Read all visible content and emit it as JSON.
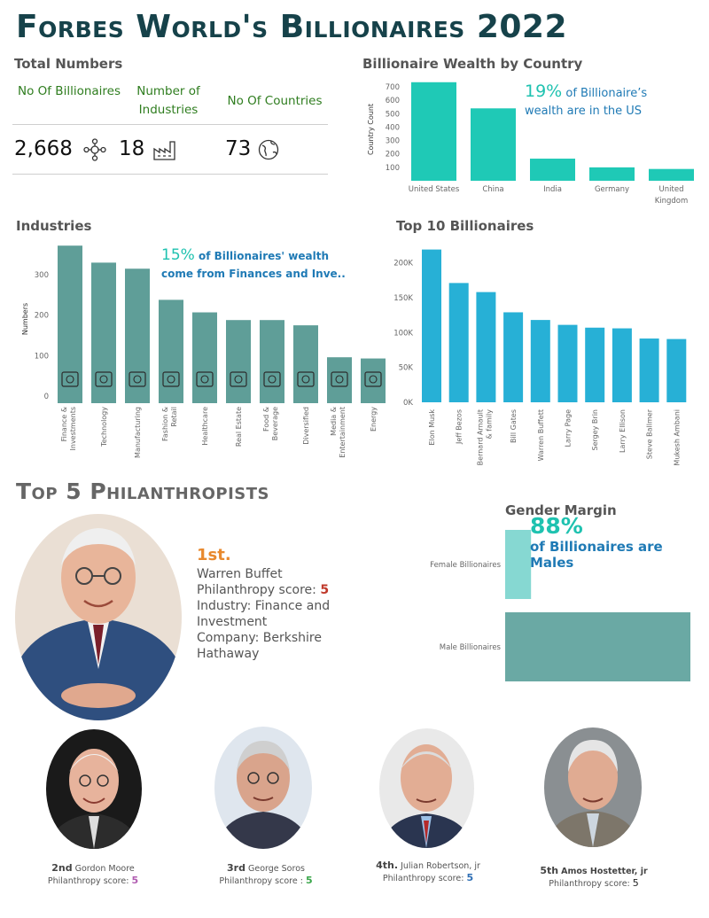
{
  "title": "Forbes World's Billionaires 2022",
  "totals": {
    "section_title": "Total Numbers",
    "headers": [
      "No Of Billionaires",
      "Number of Industries",
      "No Of Countries"
    ],
    "values": [
      "2,668",
      "18",
      "73"
    ]
  },
  "country": {
    "section_title": "Billionaire Wealth by Country",
    "note_pct": "19%",
    "note_text_1": " of Billionaire’s",
    "note_text_2": "wealth are in the US"
  },
  "industries": {
    "section_title": "Industries",
    "note_pct": "15%",
    "note_text_1": " of Billionaires' wealth",
    "note_text_2": "come from Finances and Inve.."
  },
  "top10": {
    "section_title": "Top 10 Billionaires"
  },
  "philanthropists": {
    "section_title": "Top 5 Philanthropists",
    "first": {
      "rank": "1st.",
      "name": "Warren Buffet",
      "score_label": "Philanthropy score: ",
      "score": "5",
      "industry": "Industry: Finance and Investment",
      "company": "Company: Berkshire Hathaway"
    },
    "others": [
      {
        "rank": "2nd",
        "name": "Gordon Moore",
        "score_label": "Philanthropy score: ",
        "score": "5",
        "score_color": "#b05cb0"
      },
      {
        "rank": "3rd",
        "name": "George Soros",
        "score_label": "Philanthropy score : ",
        "score": "5",
        "score_color": "#3aa64a"
      },
      {
        "rank": "4th.",
        "name": "Julian Robertson, jr",
        "score_label": "Philanthropy score: ",
        "score": "5",
        "score_color": "#2f6fb5"
      },
      {
        "rank": "5th",
        "name": "Amos Hostetter, jr",
        "score_label": "Philanthropy score: ",
        "score": "5",
        "score_color": "#222222"
      }
    ]
  },
  "gender": {
    "section_title": "Gender Margin",
    "note_pct": "88%",
    "note_text": "of Billionaires are Males"
  },
  "chart_data": [
    {
      "type": "bar",
      "title": "Billionaire Wealth by Country",
      "ylabel": "Country Count",
      "categories": [
        "United States",
        "China",
        "India",
        "Germany",
        "United Kingdom"
      ],
      "values": [
        735,
        540,
        165,
        100,
        88
      ],
      "yticks": [
        100,
        200,
        300,
        400,
        500,
        600,
        700
      ],
      "ylim": [
        0,
        760
      ],
      "color": "#1fc9b6"
    },
    {
      "type": "bar",
      "title": "Industries",
      "ylabel": "Numbers",
      "categories": [
        "Finance & Investments",
        "Technology",
        "Manufacturing",
        "Fashion & Retail",
        "Healthcare",
        "Real Estate",
        "Food & Beverage",
        "Diversified",
        "Media & Entertainment",
        "Energy"
      ],
      "values": [
        372,
        330,
        315,
        238,
        207,
        188,
        188,
        175,
        96,
        93
      ],
      "yticks": [
        0,
        100,
        200,
        300
      ],
      "ylim": [
        0,
        390
      ],
      "color": "#5f9e98"
    },
    {
      "type": "bar",
      "title": "Top 10 Billionaires",
      "categories": [
        "Elon Musk",
        "Jeff Bezos",
        "Bernard Arnault & family",
        "Bill Gates",
        "Warren Buffett",
        "Larry Page",
        "Sergey Brin",
        "Larry Ellison",
        "Steve Ballmer",
        "Mukesh Ambani"
      ],
      "values": [
        219000,
        171000,
        158000,
        129000,
        118000,
        111000,
        107000,
        106000,
        91400,
        90700
      ],
      "yticks": [
        0,
        50000,
        100000,
        150000,
        200000
      ],
      "ytick_labels": [
        "0K",
        "50K",
        "100K",
        "150K",
        "200K"
      ],
      "ylim": [
        0,
        235000
      ],
      "color": "#27b0d6"
    },
    {
      "type": "bar",
      "orientation": "horizontal",
      "title": "Gender Margin",
      "categories": [
        "Female Billionaires",
        "Male Billionaires"
      ],
      "values": [
        327,
        2341
      ],
      "colors": [
        "#86d8d2",
        "#6aa9a4"
      ]
    }
  ]
}
